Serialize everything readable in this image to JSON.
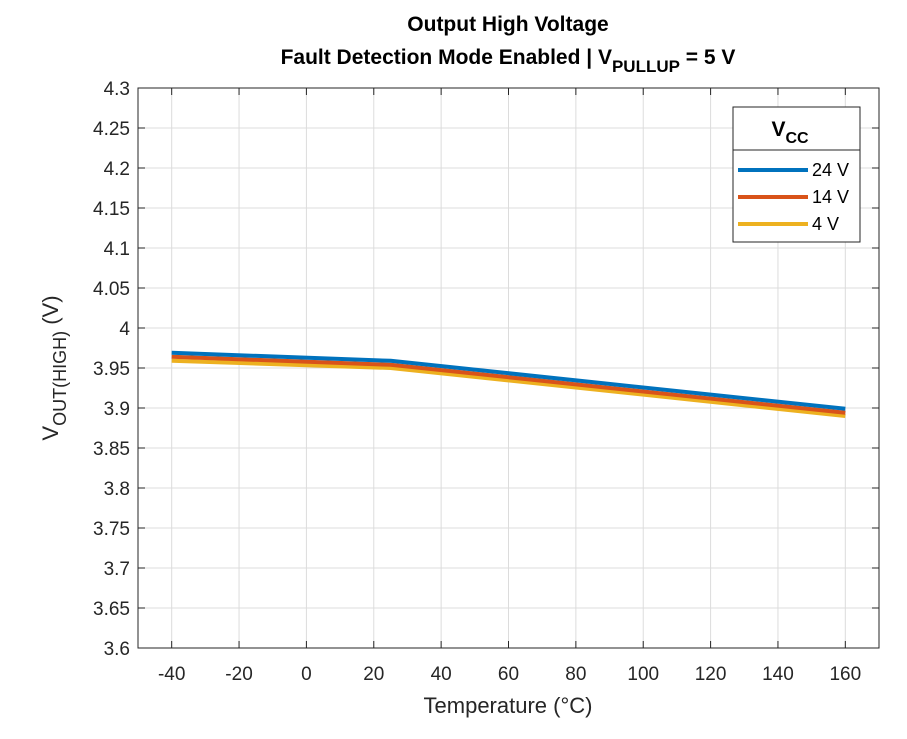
{
  "chart_data": {
    "type": "line",
    "title": {
      "line1": "Output High Voltage",
      "line2_prefix": "Fault Detection Mode Enabled | V",
      "line2_sub": "PULLUP",
      "line2_suffix": " = 5 V"
    },
    "xlabel": "Temperature (°C)",
    "ylabel": {
      "main": "V",
      "sub": "OUT(HIGH)",
      "suffix": " (V)"
    },
    "xlim": [
      -50,
      170
    ],
    "ylim": [
      3.6,
      4.3
    ],
    "xticks": [
      -40,
      -20,
      0,
      20,
      40,
      60,
      80,
      100,
      120,
      140,
      160
    ],
    "yticks": [
      "3.6",
      "3.65",
      "3.7",
      "3.75",
      "3.8",
      "3.85",
      "3.9",
      "3.95",
      "4",
      "4.05",
      "4.1",
      "4.15",
      "4.2",
      "4.25",
      "4.3"
    ],
    "grid": true,
    "x": [
      -40,
      25,
      160
    ],
    "series": [
      {
        "name": "24 V",
        "color": "#0072BD",
        "values": [
          3.969,
          3.959,
          3.899
        ]
      },
      {
        "name": "14 V",
        "color": "#D95319",
        "values": [
          3.964,
          3.954,
          3.894
        ]
      },
      {
        "name": "4 V",
        "color": "#EDB120",
        "values": [
          3.959,
          3.95,
          3.89
        ]
      }
    ],
    "legend": {
      "title_main": "V",
      "title_sub": "CC",
      "placement": "top-right"
    }
  }
}
